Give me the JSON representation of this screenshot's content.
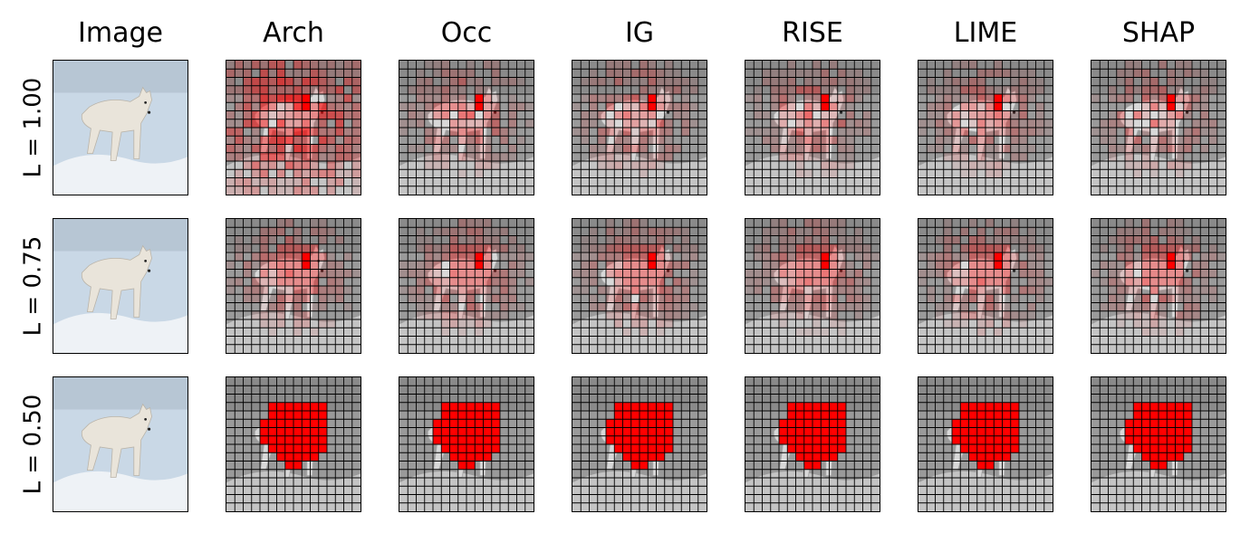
{
  "figure": {
    "columns": [
      "Image",
      "Arch",
      "Occ",
      "IG",
      "RISE",
      "LIME",
      "SHAP"
    ],
    "rows": [
      {
        "label": "L = 1.00",
        "level": 1.0
      },
      {
        "label": "L = 0.75",
        "level": 0.75
      },
      {
        "label": "L = 0.50",
        "level": 0.5
      }
    ],
    "grid_cells": 16,
    "colors": {
      "highlight": "#ff0000",
      "grid_line": "#000000",
      "background": "#ffffff",
      "photo_sky": "#c9d8e6",
      "photo_snow": "#eef2f6",
      "wolf_fur": "#e9e4da"
    }
  }
}
